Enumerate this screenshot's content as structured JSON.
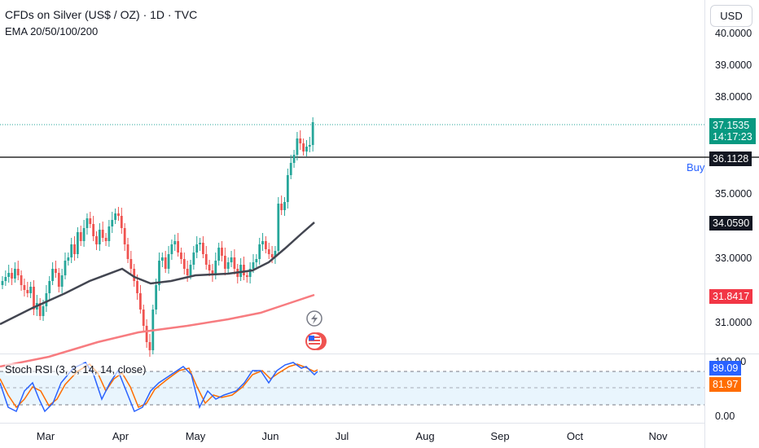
{
  "header": {
    "symbol_title": "CFDs on Silver (US$ / OZ) · 1D · TVC",
    "indicator_label": "EMA 20/50/100/200"
  },
  "currency_button": "USD",
  "buy_label": "Buy",
  "price_axis": {
    "ticks": [
      "40.0000",
      "39.0000",
      "38.0000",
      "35.0000",
      "33.0000",
      "31.0000"
    ]
  },
  "price_tags": {
    "last_price": "37.1535",
    "countdown": "14:17:23",
    "horizontal_line": "36.1128",
    "ema_black": "34.0590",
    "ema_red": "31.8417"
  },
  "rsi": {
    "label": "Stoch RSI (3, 3, 14, 14, close)",
    "k_value": "89.09",
    "d_value": "81.97",
    "top_tick": "100.00",
    "bottom_tick": "0.00"
  },
  "time_axis": {
    "labels": [
      "Mar",
      "Apr",
      "May",
      "Jun",
      "Jul",
      "Aug",
      "Sep",
      "Oct",
      "Nov"
    ]
  },
  "colors": {
    "up": "#26a69a",
    "down": "#ef5350",
    "ema_black": "#434651",
    "ema_red": "#f77c80",
    "rsi_k": "#2962ff",
    "rsi_d": "#ff6d00",
    "last_price_tag": "#089981"
  },
  "icons": [
    "lightning-icon",
    "us-flag-icon"
  ]
}
